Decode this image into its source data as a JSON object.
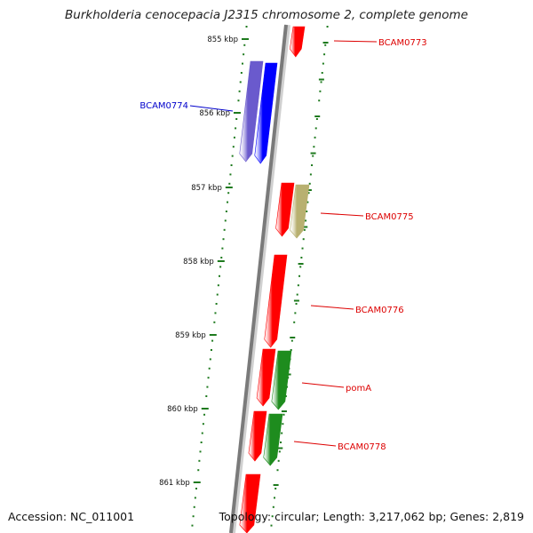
{
  "title": "Burkholderia cenocepacia J2315 chromosome 2, complete genome",
  "footer": {
    "accession": "Accession: NC_011001",
    "topology": "Topology: circular; Length: 3,217,062 bp; Genes: 2,819"
  },
  "colors": {
    "backbone": "#7a7a7a",
    "tick": "#1e7a1e",
    "gene_red": "#ff0000",
    "gene_blue": "#0000ff",
    "gene_purple": "#6a5acd",
    "gene_green": "#1e8c1e",
    "gene_khaki": "#b8b070",
    "label_red": "#dd0000",
    "label_blue": "#0000cc"
  },
  "ticks": [
    {
      "label": "855 kbp"
    },
    {
      "label": "856 kbp"
    },
    {
      "label": "857 kbp"
    },
    {
      "label": "858 kbp"
    },
    {
      "label": "859 kbp"
    },
    {
      "label": "860 kbp"
    },
    {
      "label": "861 kbp"
    }
  ],
  "genes": [
    {
      "label": "BCAM0773",
      "color": "gene_red",
      "strand": "+"
    },
    {
      "label": "BCAM0774",
      "color": "gene_blue",
      "strand": "+"
    },
    {
      "label": "",
      "color": "gene_purple",
      "strand": "+"
    },
    {
      "label": "BCAM0775",
      "color": "gene_red",
      "strand": "+"
    },
    {
      "label": "",
      "color": "gene_khaki",
      "strand": "+"
    },
    {
      "label": "BCAM0776",
      "color": "gene_red",
      "strand": "+"
    },
    {
      "label": "",
      "color": "gene_red",
      "strand": "+"
    },
    {
      "label": "pomA",
      "color": "gene_green",
      "strand": "+"
    },
    {
      "label": "",
      "color": "gene_red",
      "strand": "+"
    },
    {
      "label": "BCAM0778",
      "color": "gene_green",
      "strand": "+"
    },
    {
      "label": "",
      "color": "gene_red",
      "strand": "+"
    }
  ]
}
